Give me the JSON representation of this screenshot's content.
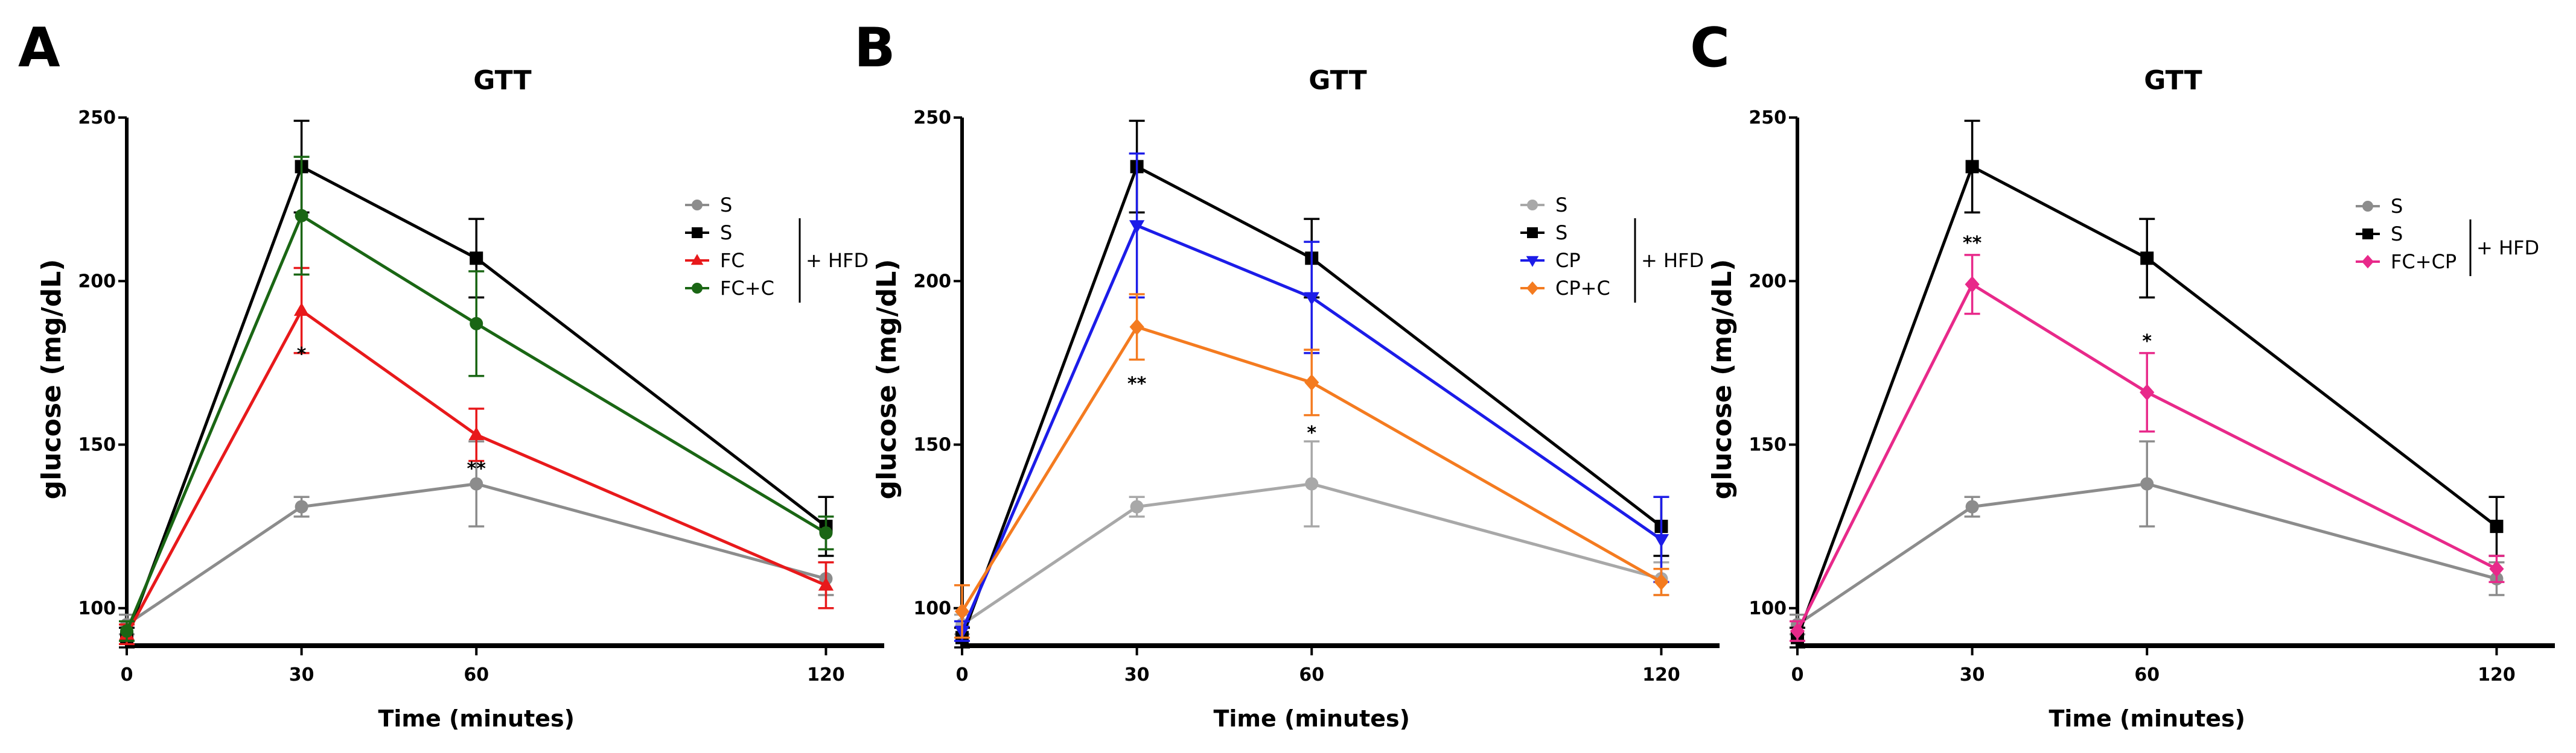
{
  "chart_data": [
    {
      "type": "line",
      "panel": "A",
      "title": "GTT",
      "xlabel": "Time (minutes)",
      "ylabel": "glucose (mg/dL)",
      "x": [
        0,
        30,
        60,
        120
      ],
      "xticks": [
        "0",
        "30",
        "60",
        "120"
      ],
      "yticks": [
        "100",
        "150",
        "200",
        "250"
      ],
      "xlim": [
        0,
        130
      ],
      "ylim": [
        90,
        250
      ],
      "hfd_label": "+ HFD",
      "series": [
        {
          "name": "S",
          "color": "#8c8c8c",
          "marker": "circle",
          "values": [
            95,
            131,
            138,
            109
          ],
          "errors": [
            3,
            3,
            13,
            5
          ]
        },
        {
          "name": "S",
          "color": "#000000",
          "marker": "square",
          "values": [
            91,
            235,
            207,
            125
          ],
          "errors": [
            3,
            14,
            12,
            9
          ]
        },
        {
          "name": "FC",
          "color": "#e8191b",
          "marker": "triangle-up",
          "values": [
            92,
            191,
            153,
            107
          ],
          "errors": [
            3,
            13,
            8,
            7
          ]
        },
        {
          "name": "FC+C",
          "color": "#1a6614",
          "marker": "circle",
          "values": [
            93,
            220,
            187,
            123
          ],
          "errors": [
            3,
            18,
            16,
            5
          ]
        }
      ],
      "hfd_series": [
        1,
        2,
        3
      ],
      "annotations": [
        {
          "x": 30,
          "y": 178,
          "text": "*"
        },
        {
          "x": 60,
          "y": 143,
          "text": "**"
        }
      ]
    },
    {
      "type": "line",
      "panel": "B",
      "title": "GTT",
      "xlabel": "Time (minutes)",
      "ylabel": "glucose (mg/dL)",
      "x": [
        0,
        30,
        60,
        120
      ],
      "xticks": [
        "0",
        "30",
        "60",
        "120"
      ],
      "yticks": [
        "100",
        "150",
        "200",
        "250"
      ],
      "xlim": [
        0,
        130
      ],
      "ylim": [
        90,
        250
      ],
      "hfd_label": "+ HFD",
      "series": [
        {
          "name": "S",
          "color": "#a8a8a8",
          "marker": "circle",
          "values": [
            95,
            131,
            138,
            109
          ],
          "errors": [
            3,
            3,
            13,
            5
          ]
        },
        {
          "name": "S",
          "color": "#000000",
          "marker": "square",
          "values": [
            91,
            235,
            207,
            125
          ],
          "errors": [
            3,
            14,
            12,
            9
          ]
        },
        {
          "name": "CP",
          "color": "#1c1ce8",
          "marker": "triangle-down",
          "values": [
            93,
            217,
            195,
            121
          ],
          "errors": [
            3,
            22,
            17,
            13
          ]
        },
        {
          "name": "CP+C",
          "color": "#f47b20",
          "marker": "diamond",
          "values": [
            99,
            186,
            169,
            108
          ],
          "errors": [
            8,
            10,
            10,
            4
          ]
        }
      ],
      "hfd_series": [
        1,
        2,
        3
      ],
      "annotations": [
        {
          "x": 30,
          "y": 169,
          "text": "**"
        },
        {
          "x": 60,
          "y": 154,
          "text": "*"
        }
      ]
    },
    {
      "type": "line",
      "panel": "C",
      "title": "GTT",
      "xlabel": "Time (minutes)",
      "ylabel": "glucose (mg/dL)",
      "x": [
        0,
        30,
        60,
        120
      ],
      "xticks": [
        "0",
        "30",
        "60",
        "120"
      ],
      "yticks": [
        "100",
        "150",
        "200",
        "250"
      ],
      "xlim": [
        0,
        130
      ],
      "ylim": [
        90,
        250
      ],
      "hfd_label": "+ HFD",
      "series": [
        {
          "name": "S",
          "color": "#8c8c8c",
          "marker": "circle",
          "values": [
            95,
            131,
            138,
            109
          ],
          "errors": [
            3,
            3,
            13,
            5
          ]
        },
        {
          "name": "S",
          "color": "#000000",
          "marker": "square",
          "values": [
            91,
            235,
            207,
            125
          ],
          "errors": [
            3,
            14,
            12,
            9
          ]
        },
        {
          "name": "FC+CP",
          "color": "#e8298a",
          "marker": "diamond",
          "values": [
            93,
            199,
            166,
            112
          ],
          "errors": [
            3,
            9,
            12,
            4
          ]
        }
      ],
      "hfd_series": [
        1,
        2
      ],
      "annotations": [
        {
          "x": 30,
          "y": 212,
          "text": "**"
        },
        {
          "x": 60,
          "y": 182,
          "text": "*"
        }
      ]
    }
  ]
}
